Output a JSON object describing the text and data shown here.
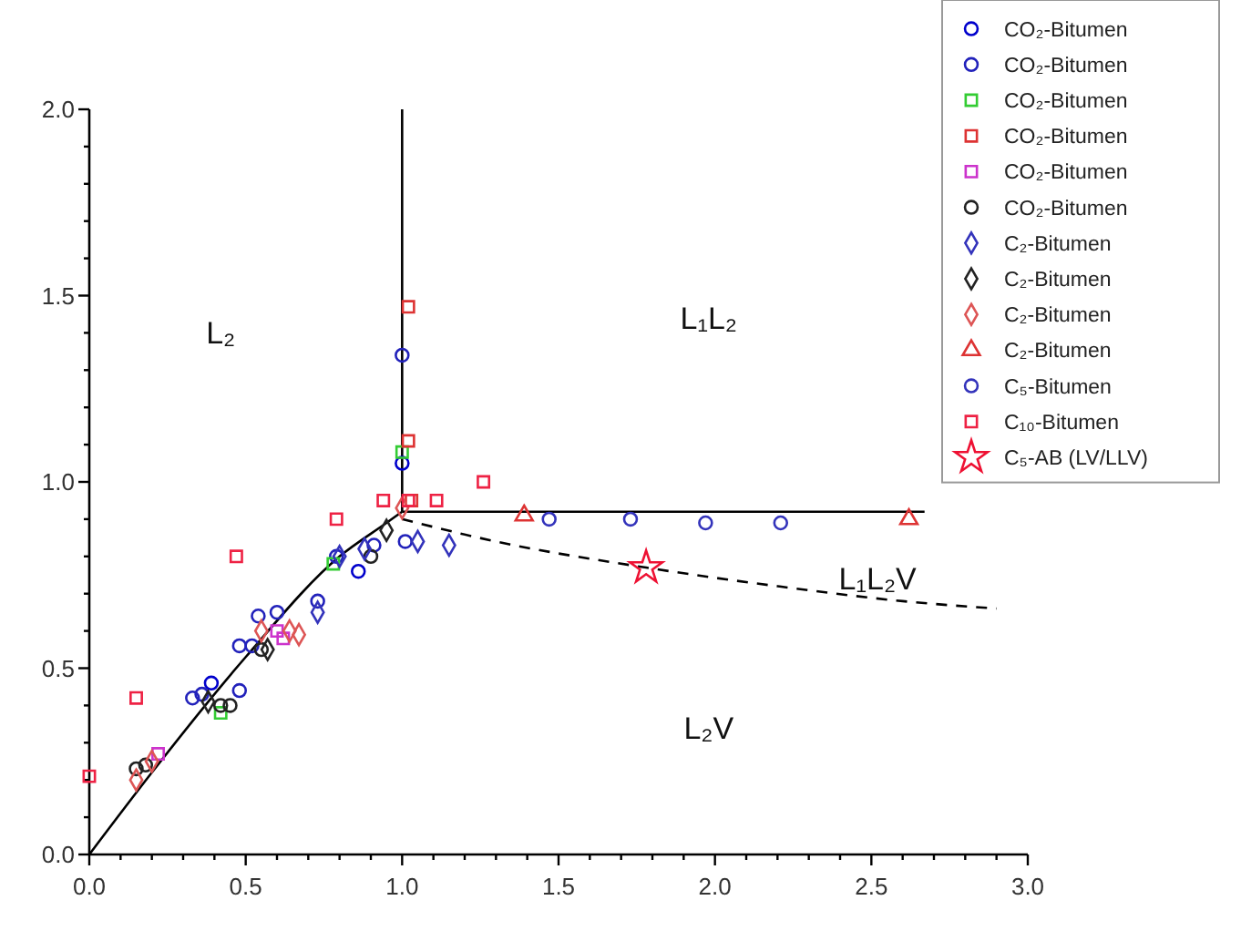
{
  "chart_data": {
    "type": "scatter",
    "legend": "top right",
    "grid": false,
    "xlim": [
      0,
      3.0
    ],
    "ylim": [
      0,
      2.0
    ],
    "xticks": [
      "0.0",
      {
        "value": 0.1,
        "label": null
      },
      {
        "value": 0.2,
        "label": null
      },
      {
        "value": 0.3,
        "label": null
      },
      {
        "value": 0.4,
        "label": null
      },
      0.5,
      {
        "value": 0.6,
        "label": null
      },
      {
        "value": 0.7,
        "label": null
      },
      {
        "value": 0.8,
        "label": null
      },
      {
        "value": 0.9,
        "label": null
      },
      "1.0",
      {
        "value": 1.1,
        "label": null
      },
      {
        "value": 1.2,
        "label": null
      },
      {
        "value": 1.3,
        "label": null
      },
      {
        "value": 1.4,
        "label": null
      },
      1.5,
      {
        "value": 1.6,
        "label": null
      },
      {
        "value": 1.7,
        "label": null
      },
      {
        "value": 1.8,
        "label": null
      },
      {
        "value": 1.9,
        "label": null
      },
      "2.0",
      {
        "value": 2.1,
        "label": null
      },
      {
        "value": 2.2,
        "label": null
      },
      {
        "value": 2.3,
        "label": null
      },
      {
        "value": 2.4,
        "label": null
      },
      2.5,
      {
        "value": 2.6,
        "label": null
      },
      {
        "value": 2.7,
        "label": null
      },
      {
        "value": 2.8,
        "label": null
      },
      {
        "value": 2.9,
        "label": null
      },
      "3.0"
    ],
    "yticks": [
      "0.0",
      {
        "value": 0.1,
        "label": null
      },
      {
        "value": 0.2,
        "label": null
      },
      {
        "value": 0.3,
        "label": null
      },
      {
        "value": 0.4,
        "label": null
      },
      0.5,
      {
        "value": 0.6,
        "label": null
      },
      {
        "value": 0.7,
        "label": null
      },
      {
        "value": 0.8,
        "label": null
      },
      {
        "value": 0.9,
        "label": null
      },
      "1.0",
      {
        "value": 1.1,
        "label": null
      },
      {
        "value": 1.2,
        "label": null
      },
      {
        "value": 1.3,
        "label": null
      },
      {
        "value": 1.4,
        "label": null
      },
      1.5,
      {
        "value": 1.6,
        "label": null
      },
      {
        "value": 1.7,
        "label": null
      },
      {
        "value": 1.8,
        "label": null
      },
      {
        "value": 1.9,
        "label": null
      },
      "2.0"
    ],
    "annotations": [
      "L₂",
      "L₁L₂",
      "L₁L₂V",
      "L₂V"
    ],
    "series": [
      {
        "type": "line",
        "color": "#000000",
        "line_style": "solid",
        "marker": "none",
        "x": [
          0,
          0.2,
          0.5,
          0.8,
          0.95,
          1.0
        ],
        "values": [
          0,
          0.22,
          0.53,
          0.8,
          0.89,
          0.92
        ]
      },
      {
        "type": "line",
        "color": "#000000",
        "line_style": "solid",
        "marker": "none",
        "x": [
          1.0,
          1.0
        ],
        "values": [
          0.92,
          2.0
        ]
      },
      {
        "type": "line",
        "color": "#000000",
        "line_style": "solid",
        "marker": "none",
        "x": [
          1.0,
          2.67
        ],
        "values": [
          0.92,
          0.92
        ]
      },
      {
        "type": "line",
        "color": "#000000",
        "line_style": "dashed",
        "marker": "none",
        "x": [
          1.0,
          1.3,
          1.78,
          2.2,
          2.6,
          2.9
        ],
        "values": [
          0.9,
          0.84,
          0.77,
          0.72,
          0.68,
          0.66
        ]
      },
      {
        "name": "CO₂-Bitumen",
        "color": "#0000cc",
        "marker": "circle",
        "x": [
          1.0,
          0.86,
          0.39
        ],
        "values": [
          1.05,
          0.76,
          0.46
        ]
      },
      {
        "name": "CO₂-Bitumen",
        "color": "#2222bb",
        "marker": "circle",
        "x": [
          0.54,
          0.6,
          0.48,
          0.52,
          0.33,
          0.36,
          0.48,
          0.73,
          0.79,
          0.91,
          1.01,
          1.0
        ],
        "values": [
          0.64,
          0.65,
          0.56,
          0.56,
          0.42,
          0.43,
          0.44,
          0.68,
          0.8,
          0.83,
          0.84,
          1.34
        ]
      },
      {
        "name": "CO₂-Bitumen",
        "color": "#33cc33",
        "marker": "square",
        "x": [
          0.42,
          0.78,
          1.0
        ],
        "values": [
          0.38,
          0.78,
          1.08
        ]
      },
      {
        "name": "CO₂-Bitumen",
        "color": "#dd3333",
        "marker": "square",
        "x": [
          1.02,
          1.02,
          1.03
        ],
        "values": [
          1.47,
          1.11,
          0.95
        ]
      },
      {
        "name": "CO₂-Bitumen",
        "color": "#cc33cc",
        "marker": "square",
        "x": [
          0.6,
          0.62,
          0.22
        ],
        "values": [
          0.6,
          0.58,
          0.27
        ]
      },
      {
        "name": "CO₂-Bitumen",
        "color": "#222222",
        "marker": "circle",
        "x": [
          0.15,
          0.18,
          0.42,
          0.45,
          0.55,
          0.9
        ],
        "values": [
          0.23,
          0.24,
          0.4,
          0.4,
          0.55,
          0.8
        ]
      },
      {
        "name": "C₂-Bitumen",
        "color": "#3333bb",
        "marker": "diamond",
        "x": [
          0.8,
          0.88,
          1.05,
          1.15,
          0.73
        ],
        "values": [
          0.8,
          0.82,
          0.84,
          0.83,
          0.65
        ]
      },
      {
        "name": "C₂-Bitumen",
        "color": "#222222",
        "marker": "diamond",
        "x": [
          0.38,
          0.57,
          0.95
        ],
        "values": [
          0.41,
          0.55,
          0.87
        ]
      },
      {
        "name": "C₂-Bitumen",
        "color": "#dd5555",
        "marker": "diamond",
        "x": [
          0.55,
          0.64,
          0.67,
          0.15,
          0.2,
          1.0
        ],
        "values": [
          0.6,
          0.6,
          0.59,
          0.2,
          0.25,
          0.93
        ]
      },
      {
        "name": "C₂-Bitumen",
        "color": "#dd3333",
        "marker": "triangle",
        "x": [
          1.39,
          2.62
        ],
        "values": [
          0.91,
          0.9
        ]
      },
      {
        "name": "C₅-Bitumen",
        "color": "#3333bb",
        "marker": "circle",
        "x": [
          1.47,
          1.73,
          1.97,
          2.21
        ],
        "values": [
          0.9,
          0.9,
          0.89,
          0.89
        ]
      },
      {
        "name": "C₁₀-Bitumen",
        "color": "#ee2244",
        "marker": "square",
        "x": [
          0.0,
          0.15,
          0.47,
          0.79,
          0.94,
          1.02,
          1.11,
          1.26
        ],
        "values": [
          0.21,
          0.42,
          0.8,
          0.9,
          0.95,
          0.95,
          0.95,
          1.0
        ]
      },
      {
        "name": "C₅-AB (LV/LLV)",
        "color": "#ee1133",
        "marker": "star",
        "x": [
          1.78
        ],
        "values": [
          0.77
        ]
      }
    ]
  }
}
